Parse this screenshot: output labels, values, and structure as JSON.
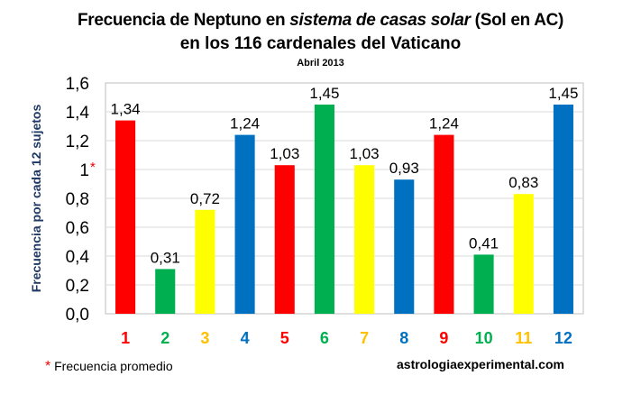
{
  "chart_data": {
    "type": "bar",
    "title": "Frecuencia de Neptuno en sistema de casas solar (Sol en AC)",
    "title_plain": "Frecuencia de Neptuno en ",
    "title_italic": "sistema de casas solar",
    "title_end": " (Sol en AC)",
    "title_line2": "en los 116 cardenales del Vaticano",
    "subtitle": "Abril 2013",
    "ylabel": "Frecuencia por cada 12 sujetos",
    "categories": [
      "1",
      "2",
      "3",
      "4",
      "5",
      "6",
      "7",
      "8",
      "9",
      "10",
      "11",
      "12"
    ],
    "values": [
      1.34,
      0.31,
      0.72,
      1.24,
      1.03,
      1.45,
      1.03,
      0.93,
      1.24,
      0.41,
      0.83,
      1.45
    ],
    "data_labels": [
      "1,34",
      "0,31",
      "0,72",
      "1,24",
      "1,03",
      "1,45",
      "1,03",
      "0,93",
      "1,24",
      "0,41",
      "0,83",
      "1,45"
    ],
    "colors": [
      "#ff0000",
      "#00b050",
      "#ffff00",
      "#0070c0",
      "#ff0000",
      "#00b050",
      "#ffff00",
      "#0070c0",
      "#ff0000",
      "#00b050",
      "#ffff00",
      "#0070c0"
    ],
    "category_label_colors": [
      "#ff0000",
      "#00b050",
      "#ffc000",
      "#0070c0",
      "#ff0000",
      "#00b050",
      "#ffc000",
      "#0070c0",
      "#ff0000",
      "#00b050",
      "#ffc000",
      "#0070c0"
    ],
    "ylim": [
      0,
      1.6
    ],
    "yticks": [
      "0,0",
      "0,2",
      "0,4",
      "0,6",
      "0,8",
      "1",
      "1,2",
      "1,4",
      "1,6"
    ],
    "ytick_marker": "*",
    "grid": true
  },
  "footnote": {
    "marker": "*",
    "text": "Frecuencia promedio"
  },
  "site": "astrologiaexperimental.com"
}
